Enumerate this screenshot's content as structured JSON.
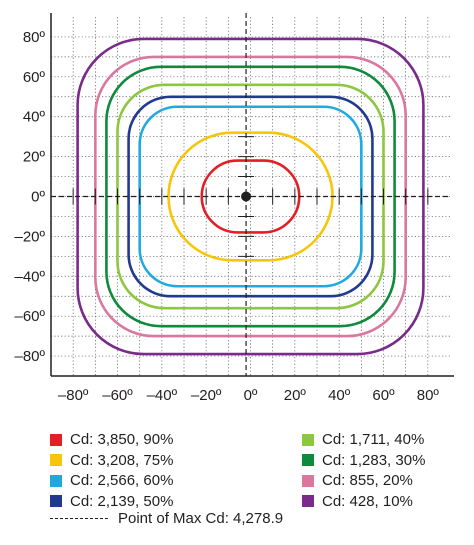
{
  "chart_data": {
    "type": "isocandela",
    "xlim": [
      -90,
      90
    ],
    "ylim": [
      -90,
      90
    ],
    "grid": true,
    "x_ticks": [
      "–80º",
      "–60º",
      "–40º",
      "–20º",
      "0º",
      "20º",
      "40º",
      "60º",
      "80º"
    ],
    "y_ticks": [
      "80º",
      "60º",
      "40º",
      "20º",
      "0º",
      "–20º",
      "–40º",
      "–60º",
      "–80º"
    ],
    "max_point": {
      "x": -2,
      "y": 0
    },
    "max_label": "Point of Max Cd: 4,278.9",
    "series": [
      {
        "name": "Cd: 3,850, 90%",
        "color": "#e31e26",
        "halfwidth": 22,
        "halfheight": 18,
        "shape": "circle"
      },
      {
        "name": "Cd: 3,208, 75%",
        "color": "#f8c608",
        "halfwidth": 37,
        "halfheight": 32,
        "shape": "circle"
      },
      {
        "name": "Cd: 2,566, 60%",
        "color": "#20a9e0",
        "halfwidth": 50,
        "halfheight": 45,
        "shape": "rounded-square"
      },
      {
        "name": "Cd: 2,139, 50%",
        "color": "#213a8f",
        "halfwidth": 55,
        "halfheight": 50,
        "shape": "rounded-square"
      },
      {
        "name": "Cd: 1,711, 40%",
        "color": "#8dc63f",
        "halfwidth": 60,
        "halfheight": 56,
        "shape": "rounded-square"
      },
      {
        "name": "Cd: 1,283, 30%",
        "color": "#0d8a3c",
        "halfwidth": 65,
        "halfheight": 65,
        "shape": "rounded-square"
      },
      {
        "name": "Cd: 855, 20%",
        "color": "#d9779f",
        "halfwidth": 70,
        "halfheight": 70,
        "shape": "rounded-square"
      },
      {
        "name": "Cd: 428, 10%",
        "color": "#7a2a8b",
        "halfwidth": 78,
        "halfheight": 79,
        "shape": "rounded-square"
      }
    ]
  }
}
